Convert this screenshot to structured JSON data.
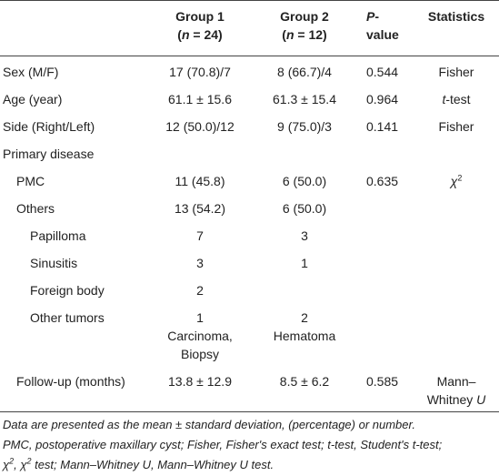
{
  "table": {
    "header": [
      [],
      [
        [
          "Group 1"
        ],
        [
          "(",
          {
            "t": "n",
            "s": "i"
          },
          " = 24)"
        ]
      ],
      [
        [
          "Group 2"
        ],
        [
          "(",
          {
            "t": "n",
            "s": "i"
          },
          " = 12)"
        ]
      ],
      [
        [
          {
            "t": "P",
            "s": "i"
          },
          "-"
        ],
        [
          "value"
        ]
      ],
      [
        [
          "Statistics"
        ]
      ]
    ],
    "rows": [
      {
        "indent": 0,
        "cells": [
          [
            [
              "Sex (M/F)"
            ]
          ],
          [
            [
              "17 (70.8)/7"
            ]
          ],
          [
            [
              "8 (66.7)/4"
            ]
          ],
          [
            [
              "0.544"
            ]
          ],
          [
            [
              "Fisher"
            ]
          ]
        ]
      },
      {
        "indent": 0,
        "cells": [
          [
            [
              "Age (year)"
            ]
          ],
          [
            [
              "61.1 ± 15.6"
            ]
          ],
          [
            [
              "61.3 ± 15.4"
            ]
          ],
          [
            [
              "0.964"
            ]
          ],
          [
            [
              {
                "t": "t",
                "s": "i"
              },
              "-test"
            ]
          ]
        ]
      },
      {
        "indent": 0,
        "cells": [
          [
            [
              "Side (Right/Left)"
            ]
          ],
          [
            [
              "12 (50.0)/12"
            ]
          ],
          [
            [
              "9 (75.0)/3"
            ]
          ],
          [
            [
              "0.141"
            ]
          ],
          [
            [
              "Fisher"
            ]
          ]
        ]
      },
      {
        "indent": 0,
        "cells": [
          [
            [
              "Primary disease"
            ]
          ],
          [],
          [],
          [],
          []
        ]
      },
      {
        "indent": 1,
        "cells": [
          [
            [
              "PMC"
            ]
          ],
          [
            [
              "11 (45.8)"
            ]
          ],
          [
            [
              "6 (50.0)"
            ]
          ],
          [
            [
              "0.635"
            ]
          ],
          [
            [
              {
                "t": "χ",
                "s": "i"
              },
              {
                "t": "2",
                "s": "sup"
              }
            ]
          ]
        ]
      },
      {
        "indent": 1,
        "cells": [
          [
            [
              "Others"
            ]
          ],
          [
            [
              "13 (54.2)"
            ]
          ],
          [
            [
              "6 (50.0)"
            ]
          ],
          [],
          []
        ]
      },
      {
        "indent": 2,
        "cells": [
          [
            [
              "Papilloma"
            ]
          ],
          [
            [
              "7"
            ]
          ],
          [
            [
              "3"
            ]
          ],
          [],
          []
        ]
      },
      {
        "indent": 2,
        "cells": [
          [
            [
              "Sinusitis"
            ]
          ],
          [
            [
              "3"
            ]
          ],
          [
            [
              "1"
            ]
          ],
          [],
          []
        ]
      },
      {
        "indent": 2,
        "cells": [
          [
            [
              "Foreign body"
            ]
          ],
          [
            [
              "2"
            ]
          ],
          [],
          [],
          []
        ]
      },
      {
        "indent": 2,
        "cells": [
          [
            [
              "Other tumors"
            ]
          ],
          [
            [
              "1"
            ],
            [
              "Carcinoma,"
            ],
            [
              "Biopsy"
            ]
          ],
          [
            [
              "2"
            ],
            [
              "Hematoma"
            ]
          ],
          [],
          []
        ]
      },
      {
        "indent": 1,
        "cells": [
          [
            [
              "Follow-up (months)"
            ]
          ],
          [
            [
              "13.8 ± 12.9"
            ]
          ],
          [
            [
              "8.5 ± 6.2"
            ]
          ],
          [
            [
              "0.585"
            ]
          ],
          [
            [
              "Mann–"
            ],
            [
              "Whitney ",
              {
                "t": "U",
                "s": "i"
              }
            ]
          ]
        ]
      }
    ],
    "notes": [
      [
        "Data are presented as the mean ± standard deviation, (percentage) or number."
      ],
      [
        "PMC, postoperative maxillary cyst; Fisher, Fisher's exact test; t-test, Student's t-test;"
      ],
      [
        "χ",
        {
          "t": "2",
          "s": "sup"
        },
        ", χ",
        {
          "t": "2",
          "s": "sup"
        },
        " test; Mann–Whitney U, Mann–Whitney U test."
      ]
    ]
  }
}
